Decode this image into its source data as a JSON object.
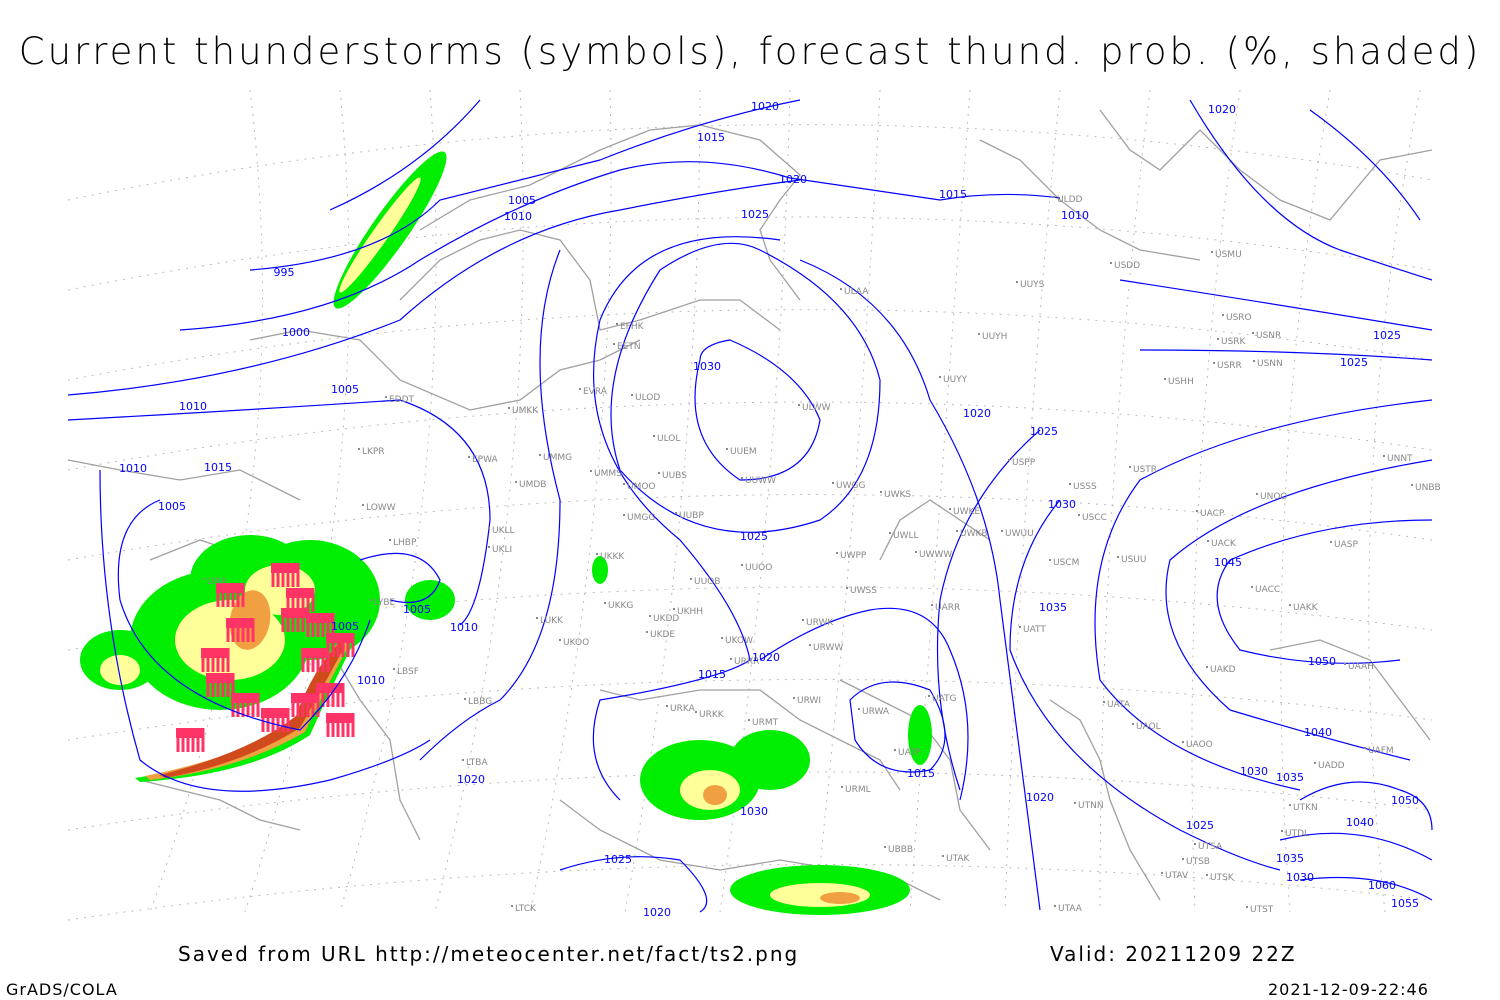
{
  "title": "Current thunderstorms (symbols), forecast thund. prob. (%, shaded)",
  "footer": {
    "source": "Saved from URL http://meteocenter.net/fact/ts2.png",
    "valid": "Valid: 20211209 22Z",
    "software": "GrADS/COLA",
    "timestamp": "2021-12-09-22:46"
  },
  "colors": {
    "isobar": "#0000ff",
    "coastline": "#a0a0a0",
    "prob_low": "#00ee00",
    "prob_mid": "#ffff99",
    "prob_high": "#f0a040",
    "prob_max": "#d04a1e",
    "storm_symbol": "#ff3366"
  },
  "isobar_labels": [
    "1010",
    "1015",
    "1020",
    "1005",
    "1010",
    "1025",
    "1015",
    "1020",
    "995",
    "1000",
    "1005",
    "1010",
    "1010",
    "1015",
    "1005",
    "1030",
    "1020",
    "1025",
    "1025",
    "1030",
    "1045",
    "1035",
    "1020",
    "1020",
    "1050",
    "1040",
    "1030",
    "1035",
    "1050",
    "1040",
    "1025",
    "1035",
    "1030",
    "1060",
    "1055",
    "1005",
    "1005",
    "1010",
    "1010",
    "1015",
    "1020",
    "1025",
    "1025",
    "1015",
    "1020",
    "1025",
    "1030",
    "1020"
  ],
  "stations": [
    "EFHK",
    "EETN",
    "EVRA",
    "ULOD",
    "ULOL",
    "UUEM",
    "UUWW",
    "UWGG",
    "UMKK",
    "UMMG",
    "EPWA",
    "EDDT",
    "LKPR",
    "LOWW",
    "LHBP",
    "UMMS",
    "UMOO",
    "UUBS",
    "UMDB",
    "UMGG",
    "UUBP",
    "UKLL",
    "UKLI",
    "UKKK",
    "UUOO",
    "UWPP",
    "UWKS",
    "UWLL",
    "UWKE",
    "UWKB",
    "UWUU",
    "UWWW",
    "USSS",
    "USCC",
    "USCM",
    "USUU",
    "USTR",
    "USPP",
    "UUYY",
    "UUYH",
    "ULWW",
    "ULAA",
    "ULDD",
    "USDD",
    "USMU",
    "USRO",
    "USRK",
    "USNR",
    "USRR",
    "USNN",
    "USHH",
    "UUYS",
    "UNNT",
    "UNBB",
    "UNOO",
    "UACP",
    "UACK",
    "UASP",
    "UACC",
    "UAKK",
    "UAKD",
    "UAAH",
    "UATT",
    "UATA",
    "UAOL",
    "UAOO",
    "UAFM",
    "UADD",
    "UTKN",
    "UTDL",
    "UTSA",
    "UTSB",
    "UTSK",
    "UTAV",
    "UTAA",
    "UTST",
    "UTNN",
    "UTAK",
    "UBBB",
    "URML",
    "URWA",
    "UATG",
    "UATP",
    "URWI",
    "URMT",
    "URKK",
    "URKA",
    "URRR",
    "UKOW",
    "URWW",
    "URWK",
    "UWSS",
    "UARR",
    "UKHH",
    "UKDD",
    "UKKG",
    "UKDE",
    "UKOO",
    "LUKK",
    "UUOB",
    "LYBE",
    "LBSF",
    "LBBG",
    "LTBA",
    "LTCK",
    "LIRA"
  ],
  "prob_levels_pct": [
    10,
    30,
    50,
    70
  ]
}
